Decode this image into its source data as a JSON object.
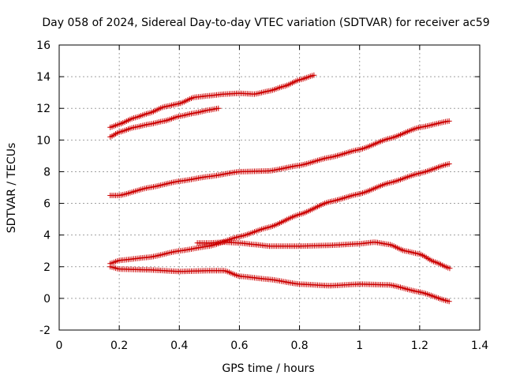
{
  "chart_data": {
    "type": "scatter",
    "title": "Day 058 of 2024, Sidereal Day-to-day VTEC variation (SDTVAR) for receiver ac59",
    "xlabel": "GPS time / hours",
    "ylabel": "SDTVAR / TECUs",
    "xlim": [
      0,
      1.4
    ],
    "ylim": [
      -2,
      16
    ],
    "xticks": [
      "0",
      "0.2",
      "0.4",
      "0.6",
      "0.8",
      "1",
      "1.2",
      "1.4"
    ],
    "yticks": [
      "-2",
      "0",
      "2",
      "4",
      "6",
      "8",
      "10",
      "12",
      "14",
      "16"
    ],
    "grid": true,
    "marker": "plus",
    "color": "#cc0000",
    "series": [
      {
        "name": "series-1",
        "x": [
          0.17,
          0.2,
          0.25,
          0.3,
          0.35,
          0.4,
          0.45,
          0.5,
          0.55,
          0.6,
          0.65,
          0.7,
          0.75,
          0.8,
          0.85
        ],
        "y": [
          10.8,
          11.0,
          11.4,
          11.7,
          12.1,
          12.3,
          12.7,
          12.8,
          12.9,
          12.95,
          12.9,
          13.1,
          13.4,
          13.8,
          14.1
        ]
      },
      {
        "name": "series-2",
        "x": [
          0.17,
          0.2,
          0.25,
          0.3,
          0.35,
          0.4,
          0.45,
          0.5,
          0.53
        ],
        "y": [
          10.2,
          10.5,
          10.8,
          11.0,
          11.2,
          11.5,
          11.7,
          11.9,
          12.0
        ]
      },
      {
        "name": "series-3",
        "x": [
          0.17,
          0.2,
          0.3,
          0.4,
          0.5,
          0.6,
          0.7,
          0.8,
          0.9,
          1.0,
          1.1,
          1.2,
          1.3
        ],
        "y": [
          6.5,
          6.5,
          7.0,
          7.4,
          7.7,
          8.0,
          8.05,
          8.4,
          8.9,
          9.4,
          10.1,
          10.8,
          11.2
        ]
      },
      {
        "name": "series-4",
        "x": [
          0.17,
          0.2,
          0.3,
          0.4,
          0.5,
          0.6,
          0.7,
          0.8,
          0.9,
          1.0,
          1.1,
          1.2,
          1.3
        ],
        "y": [
          2.2,
          2.4,
          2.6,
          3.0,
          3.3,
          3.9,
          4.5,
          5.3,
          6.1,
          6.6,
          7.3,
          7.9,
          8.5
        ]
      },
      {
        "name": "series-5",
        "x": [
          0.46,
          0.5,
          0.55,
          0.6,
          0.65,
          0.7,
          0.8,
          0.9,
          1.0,
          1.05,
          1.1,
          1.15,
          1.2,
          1.25,
          1.3
        ],
        "y": [
          3.5,
          3.5,
          3.55,
          3.5,
          3.4,
          3.3,
          3.3,
          3.35,
          3.45,
          3.55,
          3.4,
          3.0,
          2.8,
          2.3,
          1.9
        ]
      },
      {
        "name": "series-6",
        "x": [
          0.17,
          0.2,
          0.3,
          0.4,
          0.5,
          0.55,
          0.6,
          0.7,
          0.8,
          0.9,
          1.0,
          1.1,
          1.2,
          1.3
        ],
        "y": [
          2.0,
          1.85,
          1.8,
          1.7,
          1.75,
          1.75,
          1.4,
          1.2,
          0.9,
          0.8,
          0.9,
          0.85,
          0.4,
          -0.2
        ]
      }
    ]
  }
}
